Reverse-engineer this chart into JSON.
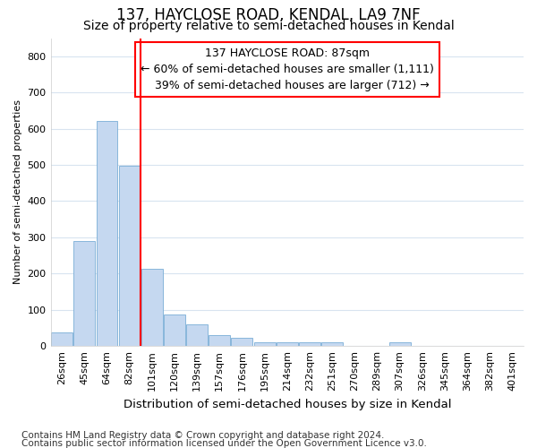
{
  "title": "137, HAYCLOSE ROAD, KENDAL, LA9 7NF",
  "subtitle": "Size of property relative to semi-detached houses in Kendal",
  "xlabel": "Distribution of semi-detached houses by size in Kendal",
  "ylabel": "Number of semi-detached properties",
  "footnote1": "Contains HM Land Registry data © Crown copyright and database right 2024.",
  "footnote2": "Contains public sector information licensed under the Open Government Licence v3.0.",
  "categories": [
    "26sqm",
    "45sqm",
    "64sqm",
    "82sqm",
    "101sqm",
    "120sqm",
    "139sqm",
    "157sqm",
    "176sqm",
    "195sqm",
    "214sqm",
    "232sqm",
    "251sqm",
    "270sqm",
    "289sqm",
    "307sqm",
    "326sqm",
    "345sqm",
    "364sqm",
    "382sqm",
    "401sqm"
  ],
  "values": [
    37,
    291,
    622,
    497,
    212,
    86,
    60,
    29,
    22,
    10,
    10,
    10,
    10,
    0,
    0,
    10,
    0,
    0,
    0,
    0,
    0
  ],
  "bar_color": "#c5d8f0",
  "bar_edge_color": "#7aaed6",
  "vline_x": 3.5,
  "vline_color": "red",
  "annotation_line1": "137 HAYCLOSE ROAD: 87sqm",
  "annotation_line2": "← 60% of semi-detached houses are smaller (1,111)",
  "annotation_line3": "   39% of semi-detached houses are larger (712) →",
  "ylim": [
    0,
    850
  ],
  "yticks": [
    0,
    100,
    200,
    300,
    400,
    500,
    600,
    700,
    800
  ],
  "bg_color": "#ffffff",
  "plot_bg_color": "#ffffff",
  "grid_color": "#d8e4f0",
  "title_fontsize": 12,
  "subtitle_fontsize": 10,
  "xlabel_fontsize": 9.5,
  "ylabel_fontsize": 8,
  "tick_fontsize": 8,
  "annot_fontsize": 9,
  "footnote_fontsize": 7.5
}
